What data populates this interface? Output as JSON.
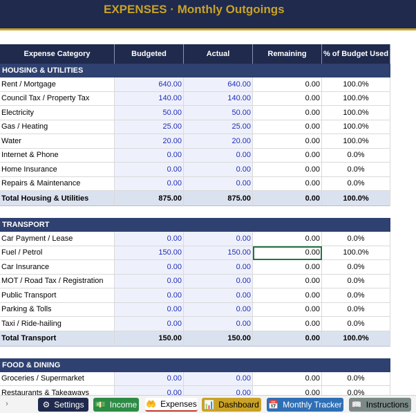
{
  "banner": {
    "title": "EXPENSES  ·  Monthly Outgoings"
  },
  "columns": [
    "Expense Category",
    "Budgeted",
    "Actual",
    "Remaining",
    "% of Budget Used"
  ],
  "sections": [
    {
      "name": "HOUSING & UTILITIES",
      "rows": [
        [
          "Rent / Mortgage",
          "640.00",
          "640.00",
          "0.00",
          "100.0%"
        ],
        [
          "Council Tax / Property Tax",
          "140.00",
          "140.00",
          "0.00",
          "100.0%"
        ],
        [
          "Electricity",
          "50.00",
          "50.00",
          "0.00",
          "100.0%"
        ],
        [
          "Gas / Heating",
          "25.00",
          "25.00",
          "0.00",
          "100.0%"
        ],
        [
          "Water",
          "20.00",
          "20.00",
          "0.00",
          "100.0%"
        ],
        [
          "Internet & Phone",
          "0.00",
          "0.00",
          "0.00",
          "0.0%"
        ],
        [
          "Home Insurance",
          "0.00",
          "0.00",
          "0.00",
          "0.0%"
        ],
        [
          "Repairs & Maintenance",
          "0.00",
          "0.00",
          "0.00",
          "0.0%"
        ]
      ],
      "total": [
        "Total Housing & Utilities",
        "875.00",
        "875.00",
        "0.00",
        "100.0%"
      ]
    },
    {
      "name": "TRANSPORT",
      "rows": [
        [
          "Car Payment / Lease",
          "0.00",
          "0.00",
          "0.00",
          "0.0%"
        ],
        [
          "Fuel / Petrol",
          "150.00",
          "150.00",
          "0.00",
          "100.0%"
        ],
        [
          "Car Insurance",
          "0.00",
          "0.00",
          "0.00",
          "0.0%"
        ],
        [
          "MOT / Road Tax / Registration",
          "0.00",
          "0.00",
          "0.00",
          "0.0%"
        ],
        [
          "Public Transport",
          "0.00",
          "0.00",
          "0.00",
          "0.0%"
        ],
        [
          "Parking & Tolls",
          "0.00",
          "0.00",
          "0.00",
          "0.0%"
        ],
        [
          "Taxi / Ride-hailing",
          "0.00",
          "0.00",
          "0.00",
          "0.0%"
        ]
      ],
      "total": [
        "Total Transport",
        "150.00",
        "150.00",
        "0.00",
        "100.0%"
      ]
    },
    {
      "name": "FOOD & DINING",
      "rows": [
        [
          "Groceries / Supermarket",
          "0.00",
          "0.00",
          "0.00",
          "0.0%"
        ],
        [
          "Restaurants & Takeaways",
          "0.00",
          "0.00",
          "0.00",
          "0.0%"
        ]
      ]
    }
  ],
  "tabs": [
    {
      "label": "Settings",
      "icon": "gear-icon",
      "glyph": "⚙"
    },
    {
      "label": "Income",
      "icon": "money-icon",
      "glyph": "💵"
    },
    {
      "label": "Expenses",
      "icon": "hand-money-icon",
      "glyph": "🤲"
    },
    {
      "label": "Dashboard",
      "icon": "chart-icon",
      "glyph": "📊"
    },
    {
      "label": "Monthly Tracker",
      "icon": "calendar-icon",
      "glyph": "📅"
    },
    {
      "label": "Instructions",
      "icon": "book-icon",
      "glyph": "📖"
    }
  ],
  "nav_arrow": "›"
}
